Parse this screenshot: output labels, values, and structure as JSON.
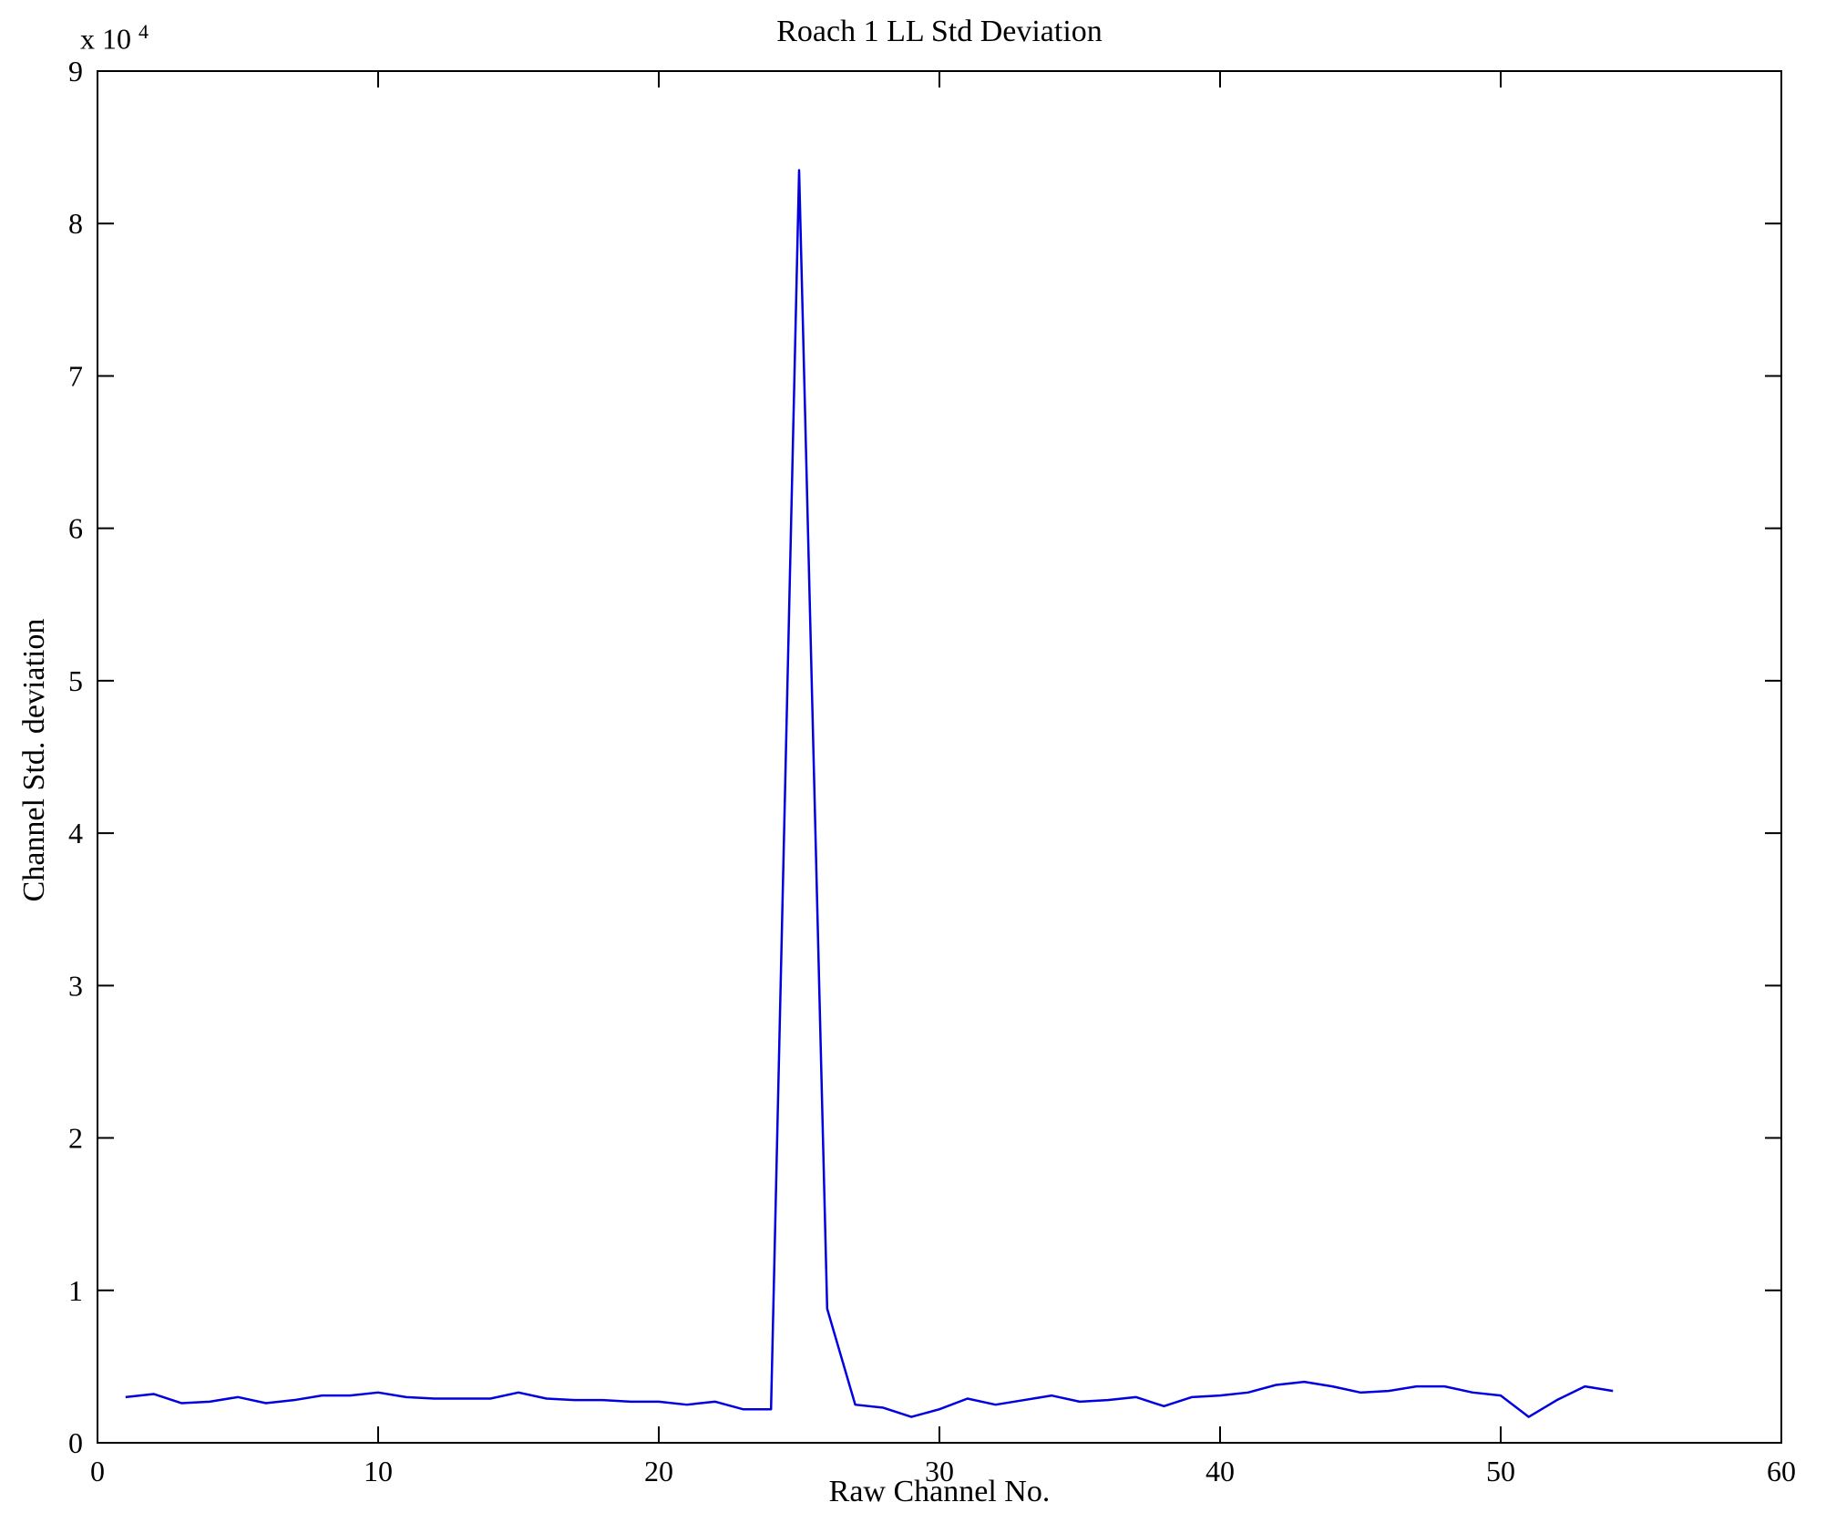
{
  "figure": {
    "background": "#ffffff"
  },
  "chart_data": {
    "type": "line",
    "title": "Roach 1 LL Std Deviation",
    "xlabel": "Raw Channel No.",
    "ylabel": "Channel Std. deviation",
    "y_scale_label": "x 10",
    "y_scale_exponent": "4",
    "y_multiplier": 10000,
    "xlim": [
      0,
      60
    ],
    "ylim": [
      0,
      9
    ],
    "xticks": [
      0,
      10,
      20,
      30,
      40,
      50,
      60
    ],
    "yticks": [
      0,
      1,
      2,
      3,
      4,
      5,
      6,
      7,
      8,
      9
    ],
    "grid": false,
    "legend": "none",
    "line_color": "#0000e0",
    "axis_color": "#000000",
    "x": [
      1,
      2,
      3,
      4,
      5,
      6,
      7,
      8,
      9,
      10,
      11,
      12,
      13,
      14,
      15,
      16,
      17,
      18,
      19,
      20,
      21,
      22,
      23,
      24,
      25,
      26,
      27,
      28,
      29,
      30,
      31,
      32,
      33,
      34,
      35,
      36,
      37,
      38,
      39,
      40,
      41,
      42,
      43,
      44,
      45,
      46,
      47,
      48,
      49,
      50,
      51,
      52,
      53,
      54
    ],
    "y": [
      0.3,
      0.32,
      0.26,
      0.27,
      0.3,
      0.26,
      0.28,
      0.31,
      0.31,
      0.33,
      0.3,
      0.29,
      0.29,
      0.29,
      0.33,
      0.29,
      0.28,
      0.28,
      0.27,
      0.27,
      0.25,
      0.27,
      0.22,
      0.22,
      8.35,
      0.88,
      0.25,
      0.23,
      0.17,
      0.22,
      0.29,
      0.25,
      0.28,
      0.31,
      0.27,
      0.28,
      0.3,
      0.24,
      0.3,
      0.31,
      0.33,
      0.38,
      0.4,
      0.37,
      0.33,
      0.34,
      0.37,
      0.37,
      0.33,
      0.31,
      0.17,
      0.28,
      0.37,
      0.34
    ]
  }
}
